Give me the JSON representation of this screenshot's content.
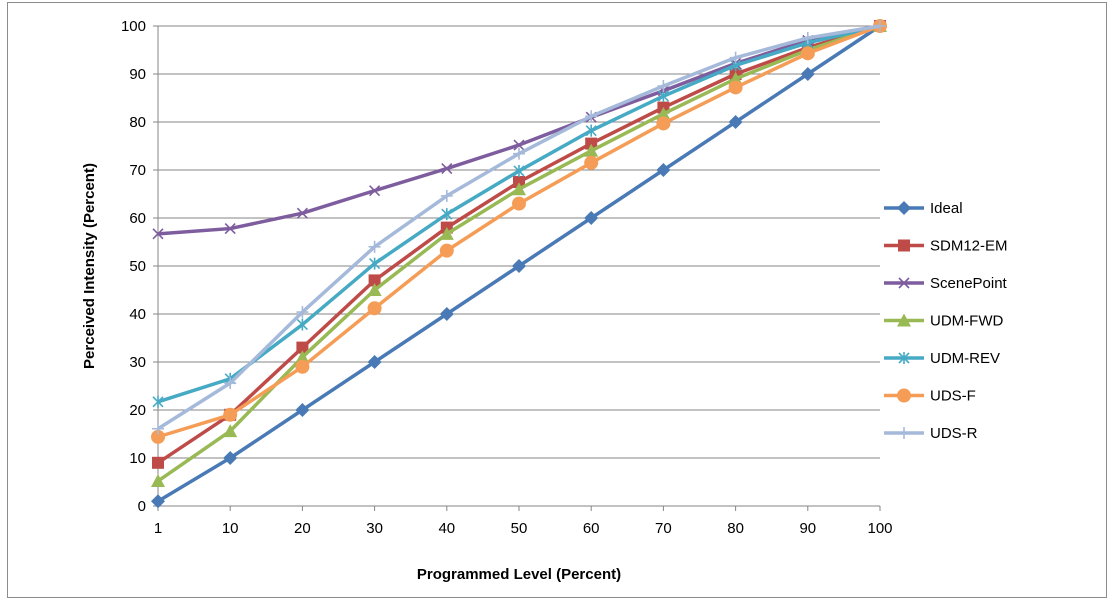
{
  "chart_data": {
    "type": "line",
    "title": "",
    "xlabel": "Programmed Level (Percent)",
    "ylabel": "Perceived Intensity (Percent)",
    "categories": [
      "1",
      "10",
      "20",
      "30",
      "40",
      "50",
      "60",
      "70",
      "80",
      "90",
      "100"
    ],
    "ylim": [
      0,
      100
    ],
    "yticks": [
      "0",
      "10",
      "20",
      "30",
      "40",
      "50",
      "60",
      "70",
      "80",
      "90",
      "100"
    ],
    "grid": true,
    "legend_position": "right",
    "series": [
      {
        "name": "Ideal",
        "color": "#4a7ab5",
        "marker": "diamond",
        "values": [
          1,
          10,
          20,
          30,
          40,
          50,
          60,
          70,
          80,
          90,
          100
        ]
      },
      {
        "name": "SDM12-EM",
        "color": "#be4b48",
        "marker": "square",
        "values": [
          9,
          19,
          33,
          47,
          58,
          67.5,
          75.5,
          83,
          90,
          95.5,
          100
        ]
      },
      {
        "name": "ScenePoint",
        "color": "#7e5d9e",
        "marker": "x",
        "values": [
          56.7,
          57.8,
          61,
          65.7,
          70.3,
          75.2,
          81,
          86.5,
          92.2,
          97,
          100
        ]
      },
      {
        "name": "UDM-FWD",
        "color": "#98b954",
        "marker": "triangle",
        "values": [
          5.2,
          15.6,
          31,
          45,
          56.7,
          66,
          74,
          81.7,
          89,
          95,
          100
        ]
      },
      {
        "name": "UDM-REV",
        "color": "#46aac5",
        "marker": "asterisk",
        "values": [
          21.7,
          26.5,
          37.8,
          50.5,
          60.8,
          69.8,
          78.2,
          85.4,
          91.8,
          96.5,
          100
        ]
      },
      {
        "name": "UDS-F",
        "color": "#f59d56",
        "marker": "circle",
        "values": [
          14.4,
          19,
          29,
          41.2,
          53.2,
          63,
          71.5,
          79.7,
          87.2,
          94.3,
          100
        ]
      },
      {
        "name": "UDS-R",
        "color": "#a5b9da",
        "marker": "plus",
        "values": [
          16.1,
          25.6,
          40.4,
          54,
          64.6,
          73.4,
          81.2,
          87.5,
          93.4,
          97.5,
          100
        ]
      }
    ]
  }
}
